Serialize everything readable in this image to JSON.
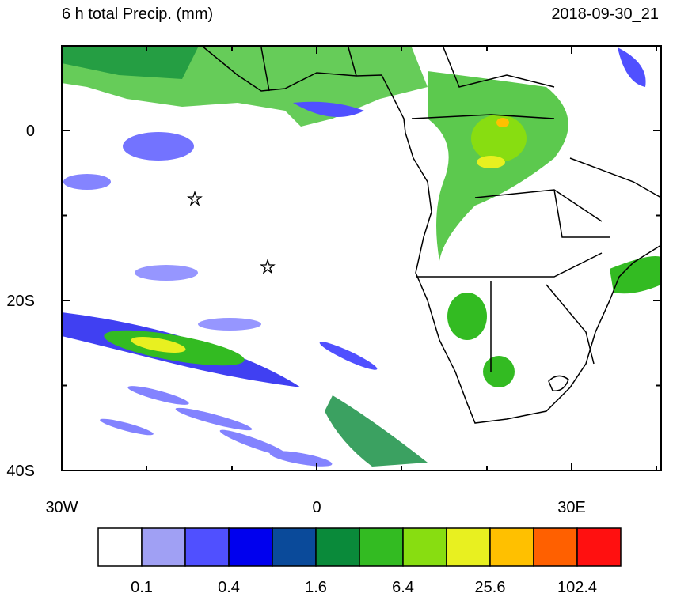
{
  "title": "6 h total Precip. (mm)",
  "timestamp": "2018-09-30_21",
  "map": {
    "lat_labels": [
      "0",
      "20S",
      "40S"
    ],
    "lon_labels": [
      "30W",
      "0",
      "30E"
    ]
  },
  "colorbar": {
    "colors": [
      "#ffffff",
      "#a0a0f4",
      "#5050ff",
      "#0000ee",
      "#0a4a9a",
      "#0a8a3a",
      "#33bb22",
      "#88dd11",
      "#e8f020",
      "#ffc000",
      "#ff6000",
      "#ff1010"
    ],
    "labels": [
      "0.1",
      "0.4",
      "1.6",
      "6.4",
      "25.6",
      "102.4"
    ]
  }
}
